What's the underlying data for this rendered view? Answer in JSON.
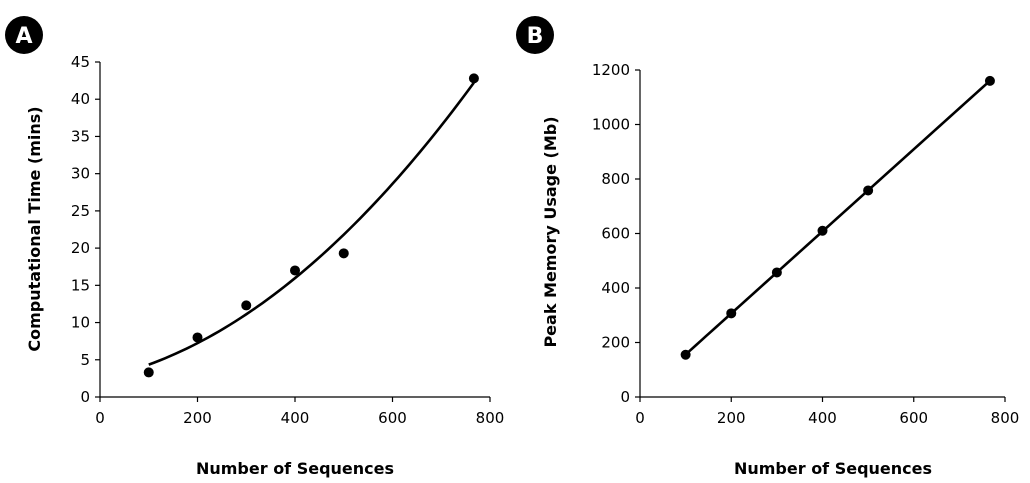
{
  "chart_data": [
    {
      "panel": "A",
      "type": "scatter",
      "xlabel": "Number of Sequences",
      "ylabel": "Computational Time (mins)",
      "xlim": [
        0,
        800
      ],
      "ylim": [
        0,
        45
      ],
      "x_ticks": [
        0,
        200,
        400,
        600,
        800
      ],
      "y_ticks": [
        0,
        5,
        10,
        15,
        20,
        25,
        30,
        35,
        40,
        45
      ],
      "grid": false,
      "trendline": "quadratic",
      "points": [
        {
          "x": 100,
          "y": 3.3
        },
        {
          "x": 200,
          "y": 8.0
        },
        {
          "x": 300,
          "y": 12.3
        },
        {
          "x": 400,
          "y": 17.0
        },
        {
          "x": 500,
          "y": 19.3
        },
        {
          "x": 767,
          "y": 42.8
        }
      ]
    },
    {
      "panel": "B",
      "type": "scatter",
      "xlabel": "Number of Sequences",
      "ylabel": "Peak Memory Usage (Mb)",
      "xlim": [
        0,
        800
      ],
      "ylim": [
        0,
        1200
      ],
      "x_ticks": [
        0,
        200,
        400,
        600,
        800
      ],
      "y_ticks": [
        0,
        200,
        400,
        600,
        800,
        1000,
        1200
      ],
      "grid": false,
      "trendline": "linear",
      "points": [
        {
          "x": 100,
          "y": 155
        },
        {
          "x": 200,
          "y": 307
        },
        {
          "x": 300,
          "y": 457
        },
        {
          "x": 400,
          "y": 610
        },
        {
          "x": 500,
          "y": 758
        },
        {
          "x": 767,
          "y": 1160
        }
      ]
    }
  ]
}
